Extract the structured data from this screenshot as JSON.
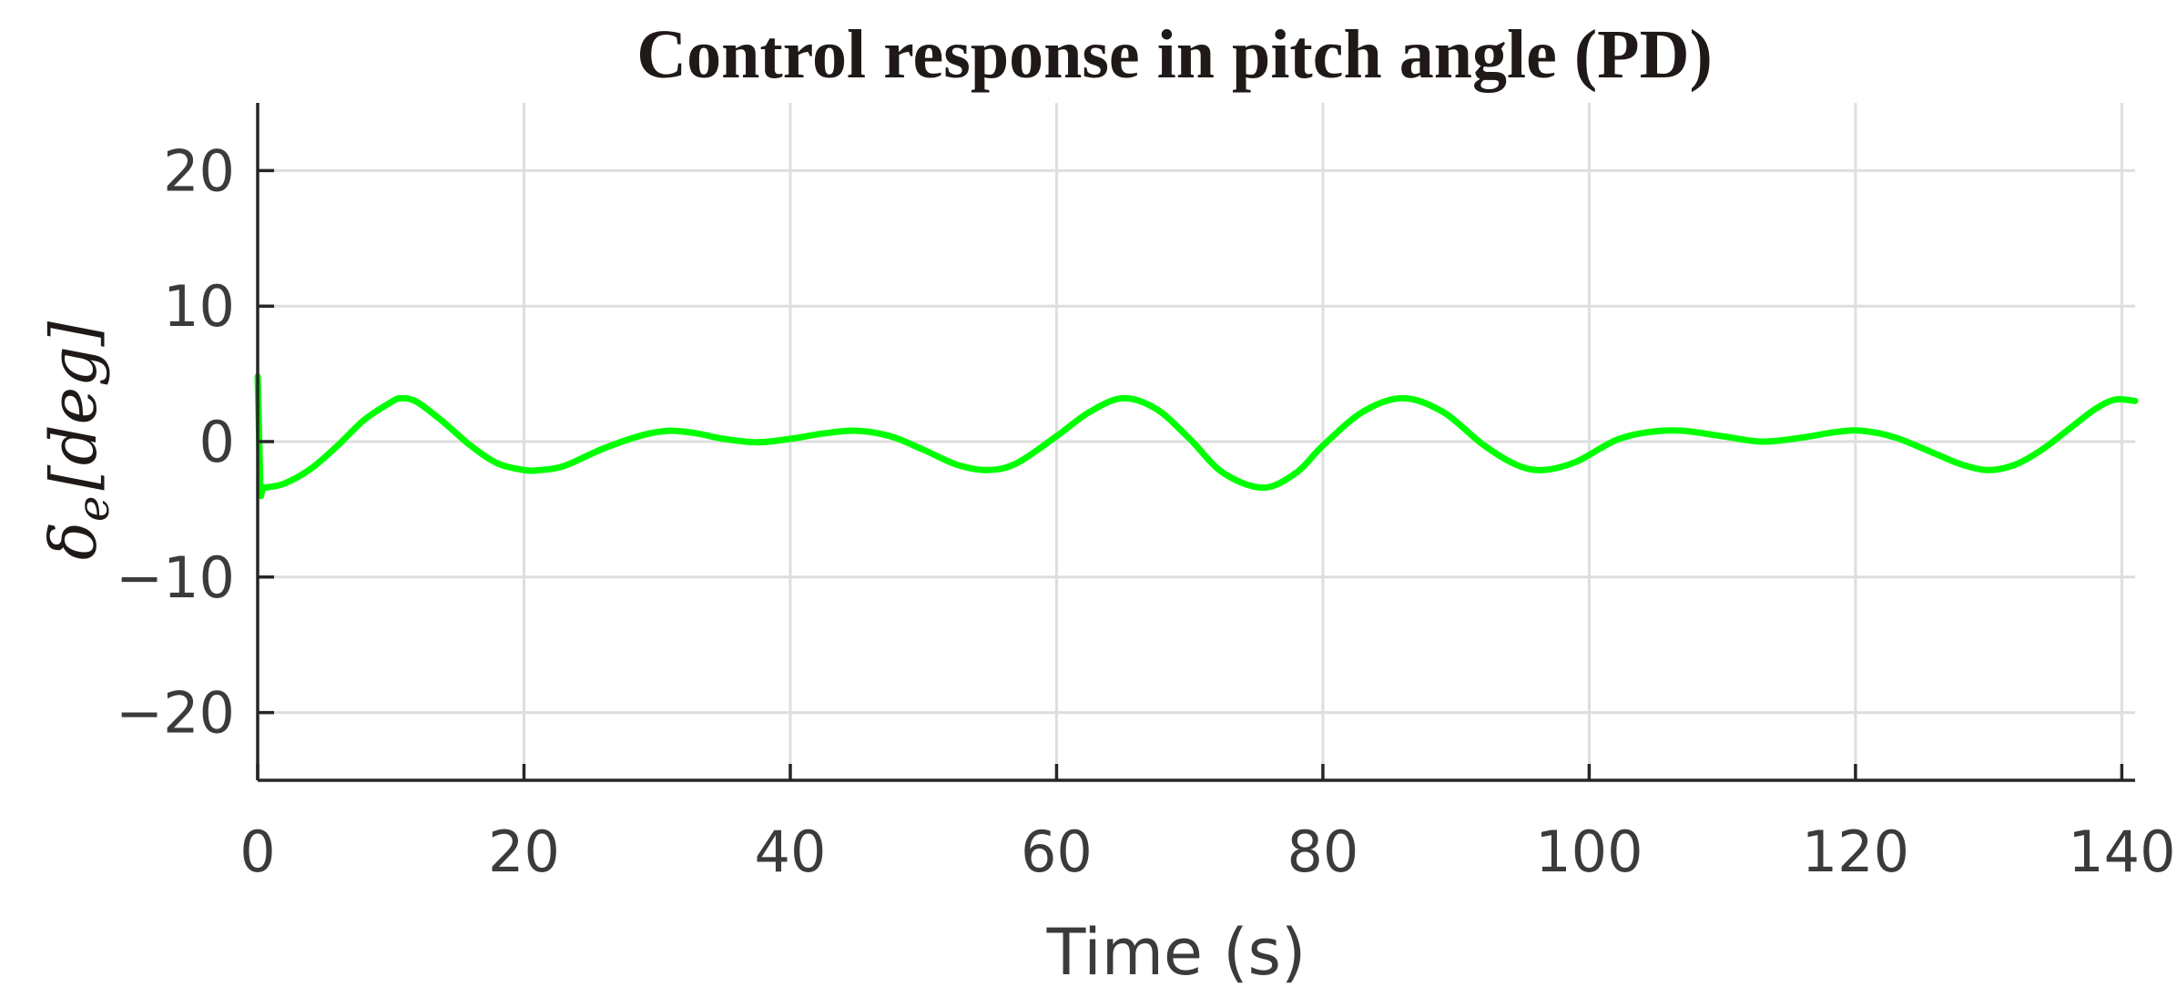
{
  "chart_data": {
    "type": "line",
    "title": "Control response in pitch angle (PD)",
    "xlabel": "Time (s)",
    "ylabel_main": "δ",
    "ylabel_sub": "e",
    "ylabel_bracket": "[deg]",
    "xlim": [
      0,
      141
    ],
    "ylim": [
      -25,
      25
    ],
    "xticks": [
      0,
      20,
      40,
      60,
      80,
      100,
      120,
      140
    ],
    "xtick_labels": [
      "0",
      "20",
      "40",
      "60",
      "80",
      "100",
      "120",
      "140"
    ],
    "yticks": [
      20,
      10,
      0,
      -10,
      -20
    ],
    "ytick_labels": [
      "20",
      "10",
      "0",
      "−10",
      "−20"
    ],
    "grid": true,
    "series": [
      {
        "color": "#00ff00",
        "x": [
          0,
          0.2,
          0.5,
          2,
          4,
          6,
          8,
          10,
          10.8,
          12,
          14,
          16,
          18,
          20,
          21.2,
          23,
          26,
          29,
          31,
          33,
          35,
          37.5,
          40,
          42.5,
          45,
          47.5,
          50,
          52.5,
          54.8,
          57,
          60,
          62.5,
          65,
          67.5,
          70,
          72.5,
          75.5,
          78,
          80,
          83,
          86,
          89,
          92,
          94.5,
          96.5,
          99,
          102,
          104.5,
          107,
          110,
          113,
          116,
          118.5,
          120.5,
          123,
          126,
          128,
          130,
          132,
          134,
          136,
          138,
          139.5,
          141
        ],
        "y": [
          4.8,
          -3.4,
          -3.4,
          -3.1,
          -2.0,
          -0.3,
          1.6,
          2.9,
          3.2,
          2.9,
          1.4,
          -0.3,
          -1.6,
          -2.1,
          -2.1,
          -1.8,
          -0.5,
          0.5,
          0.8,
          0.6,
          0.2,
          -0.05,
          0.2,
          0.6,
          0.8,
          0.4,
          -0.6,
          -1.7,
          -2.1,
          -1.6,
          0.4,
          2.2,
          3.2,
          2.4,
          0.2,
          -2.3,
          -3.4,
          -2.3,
          -0.3,
          2.2,
          3.2,
          2.2,
          -0.2,
          -1.7,
          -2.1,
          -1.5,
          0.1,
          0.7,
          0.8,
          0.4,
          0.0,
          0.3,
          0.7,
          0.8,
          0.3,
          -0.9,
          -1.7,
          -2.1,
          -1.7,
          -0.6,
          0.9,
          2.4,
          3.1,
          3.0
        ]
      }
    ]
  }
}
